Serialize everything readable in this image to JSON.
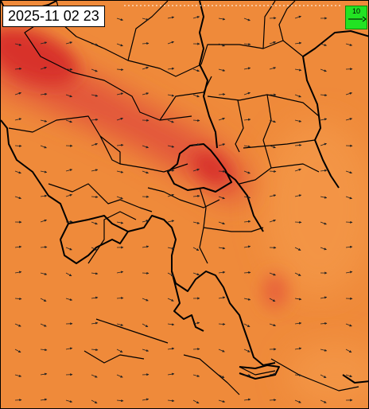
{
  "timestamp": "2025-11 02 23",
  "scale": {
    "value": "10"
  },
  "colors": {
    "base": "#ef8a3a",
    "dark_red": "#d8332a",
    "red": "#e2543a",
    "light_orange": "#f39445",
    "boundary": "#000000",
    "arrow": "#222222",
    "legend_bg": "#22e322"
  },
  "wind_field": {
    "prevailing_direction": "east",
    "arrow_style": "small-black-vectors"
  }
}
